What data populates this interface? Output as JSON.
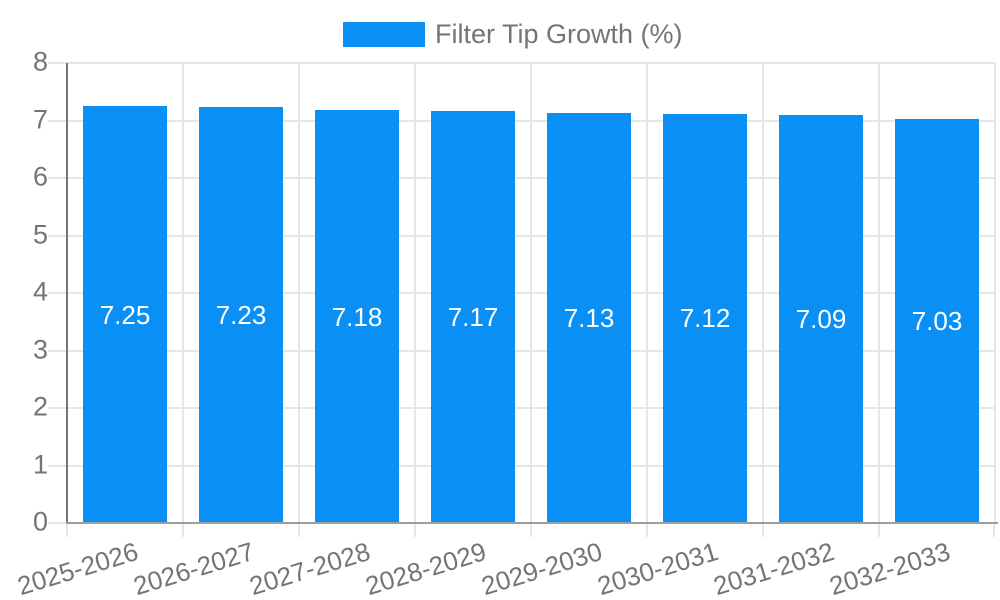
{
  "chart_data": {
    "type": "bar",
    "title": "",
    "categories": [
      "2025-2026",
      "2026-2027",
      "2027-2028",
      "2028-2029",
      "2029-2030",
      "2030-2031",
      "2031-2032",
      "2032-2033"
    ],
    "series": [
      {
        "name": "Filter Tip Growth (%)",
        "values": [
          7.25,
          7.23,
          7.18,
          7.17,
          7.13,
          7.12,
          7.09,
          7.03
        ]
      }
    ],
    "value_labels": [
      "7.25",
      "7.23",
      "7.18",
      "7.17",
      "7.13",
      "7.12",
      "7.09",
      "7.03"
    ],
    "xlabel": "",
    "ylabel": "",
    "ylim": [
      0,
      8
    ],
    "yticks": [
      0,
      1,
      2,
      3,
      4,
      5,
      6,
      7,
      8
    ],
    "grid": true,
    "legend_position": "top",
    "colors": {
      "bar": "#0a90f5",
      "grid": "#e6e6e6",
      "axis_text": "#757575",
      "y_axis_line": "#757575",
      "baseline": "#9e9e9e",
      "value_label_text": "#ffffff"
    }
  }
}
